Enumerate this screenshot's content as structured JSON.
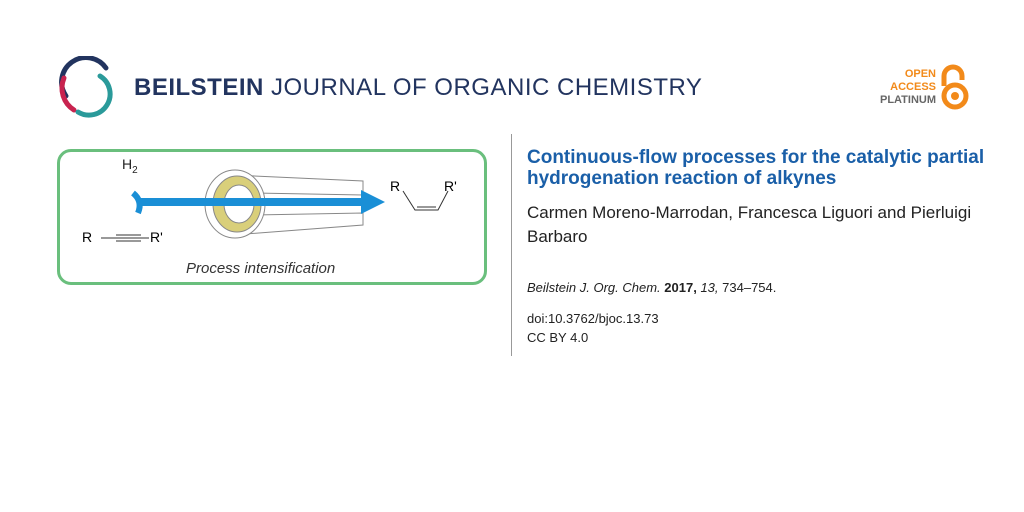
{
  "journal": {
    "name_bold": "BEILSTEIN",
    "name_rest": "JOURNAL OF ORGANIC CHEMISTRY"
  },
  "badge": {
    "line1": "OPEN",
    "line2": "ACCESS",
    "line3": "PLATINUM"
  },
  "figure": {
    "h2": "H",
    "h2_sub": "2",
    "reactant_left": "R",
    "reactant_right": "R'",
    "product_left": "R",
    "product_right": "R'",
    "caption": "Process intensification"
  },
  "article": {
    "title": "Continuous-flow processes for the catalytic partial hydrogenation reaction of alkynes",
    "authors": "Carmen Moreno-Marrodan, Francesca Liguori and Pierluigi Barbaro",
    "citation_journal": "Beilstein J. Org. Chem.",
    "year": "2017,",
    "volume": "13,",
    "pages": "734–754.",
    "doi": "doi:10.3762/bjoc.13.73",
    "license": "CC BY 4.0"
  },
  "colors": {
    "title": "#1a5fa8",
    "accent": "#f28a1a",
    "frame": "#6abf7d",
    "arrow": "#1a8fd6"
  }
}
